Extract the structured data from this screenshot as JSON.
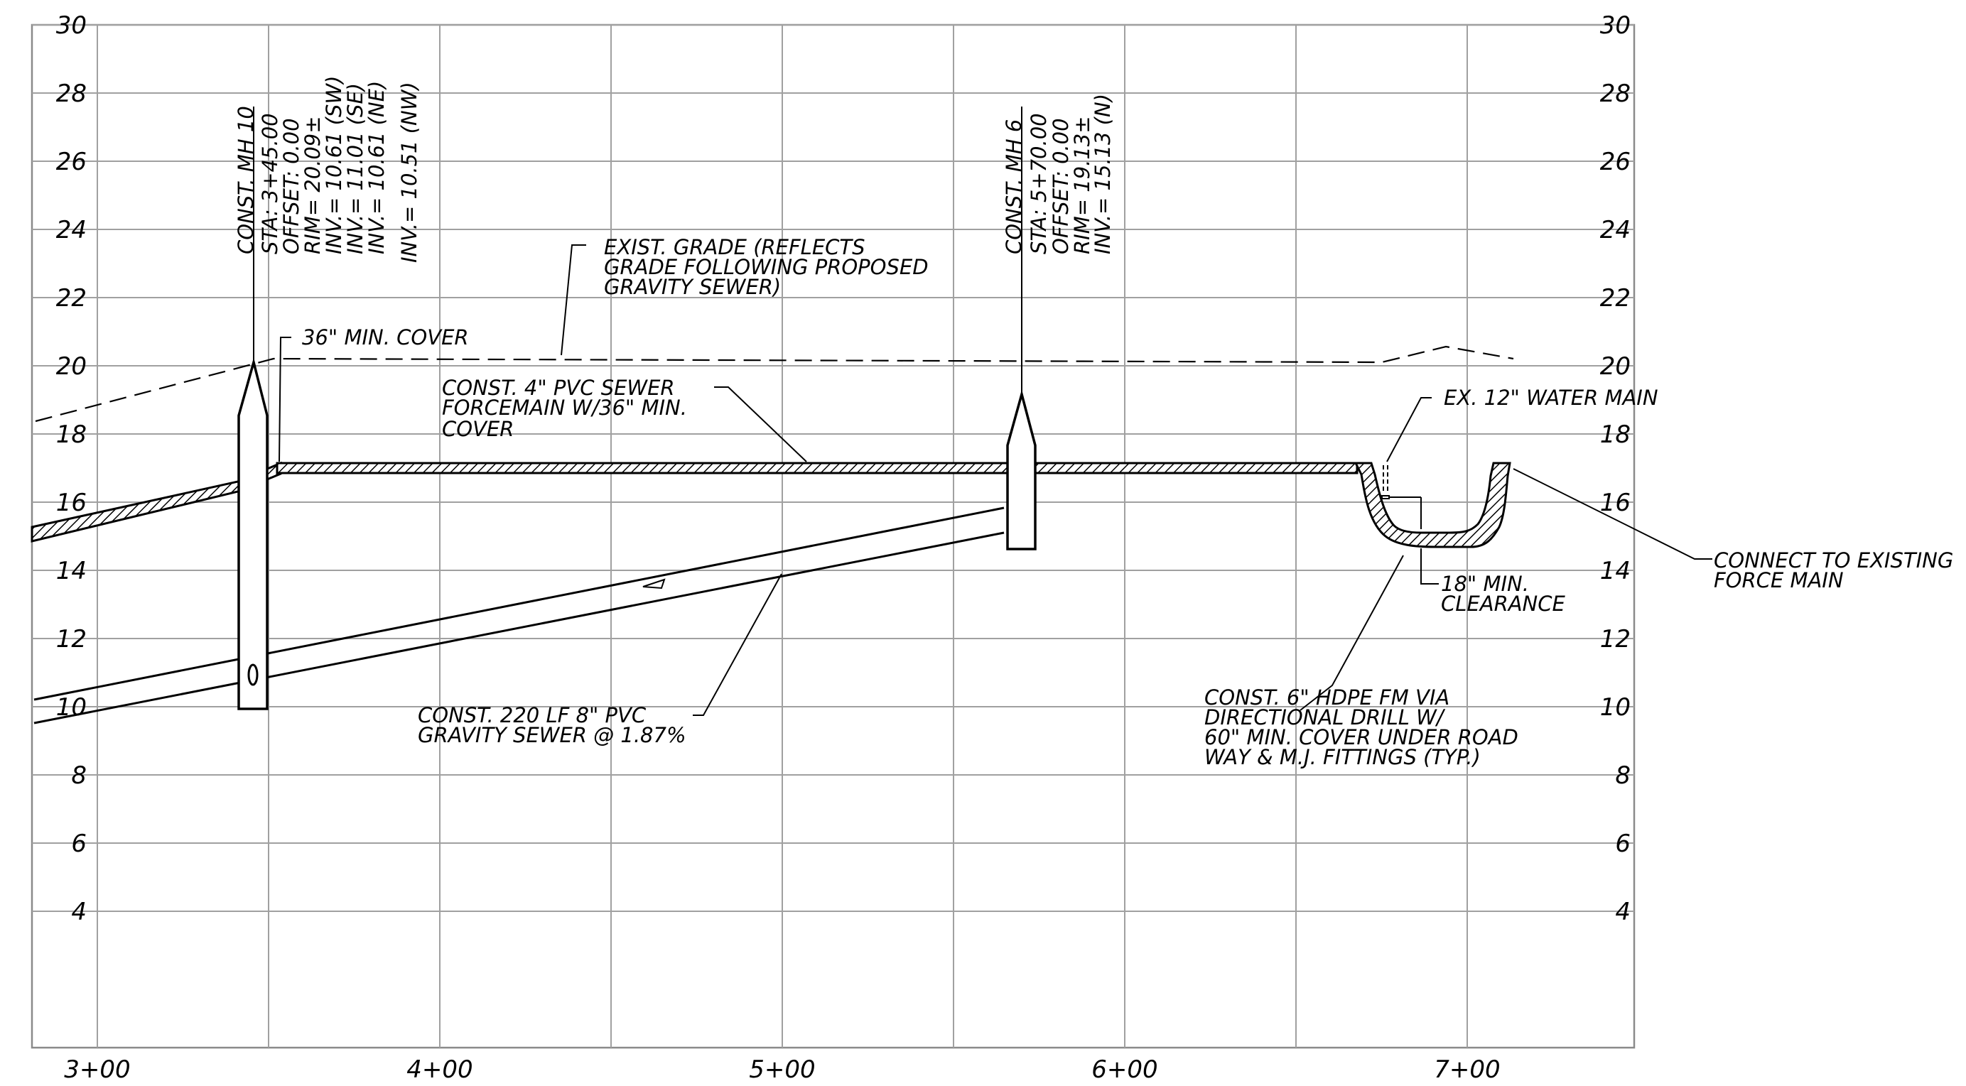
{
  "drawing": {
    "y_ticks": [
      "4",
      "6",
      "8",
      "10",
      "12",
      "14",
      "16",
      "18",
      "20",
      "22",
      "24",
      "26",
      "28",
      "30"
    ],
    "x_ticks": [
      "3+00",
      "4+00",
      "5+00",
      "6+00",
      "7+00"
    ],
    "mh10": {
      "lines": [
        "CONST. MH 10",
        "STA: 3+45.00",
        "OFFSET: 0.00",
        "RIM= 20.09±",
        "INV.= 10.61 (SW)",
        "INV.= 11.01 (SE)",
        "INV.= 10.61 (NE)",
        "INV.= 10.51 (NW)"
      ],
      "inv_symbol": "0"
    },
    "mh6": {
      "lines": [
        "CONST. MH 6",
        "STA: 5+70.00",
        "OFFSET: 0.00",
        "RIM= 19.13±",
        "INV.= 15.13 (N)"
      ]
    },
    "notes": {
      "exist_grade": [
        "EXIST. GRADE (REFLECTS",
        "GRADE FOLLOWING PROPOSED",
        "GRAVITY SEWER)"
      ],
      "min_cover": "36\" MIN. COVER",
      "forcemain": [
        "CONST. 4\" PVC SEWER",
        "FORCEMAIN W/36\" MIN.",
        "COVER"
      ],
      "water_main": "EX. 12\" WATER MAIN",
      "connect": [
        "CONNECT TO EXISTING",
        "FORCE MAIN"
      ],
      "clearance": [
        "18\" MIN.",
        "CLEARANCE"
      ],
      "gravity": [
        "CONST. 220 LF 8\" PVC",
        "GRAVITY SEWER @ 1.87%"
      ],
      "hdpe": [
        "CONST. 6\" HDPE FM VIA",
        "DIRECTIONAL DRILL W/",
        "60\" MIN. COVER UNDER ROAD",
        "WAY & M.J. FITTINGS (TYP.)"
      ]
    }
  }
}
